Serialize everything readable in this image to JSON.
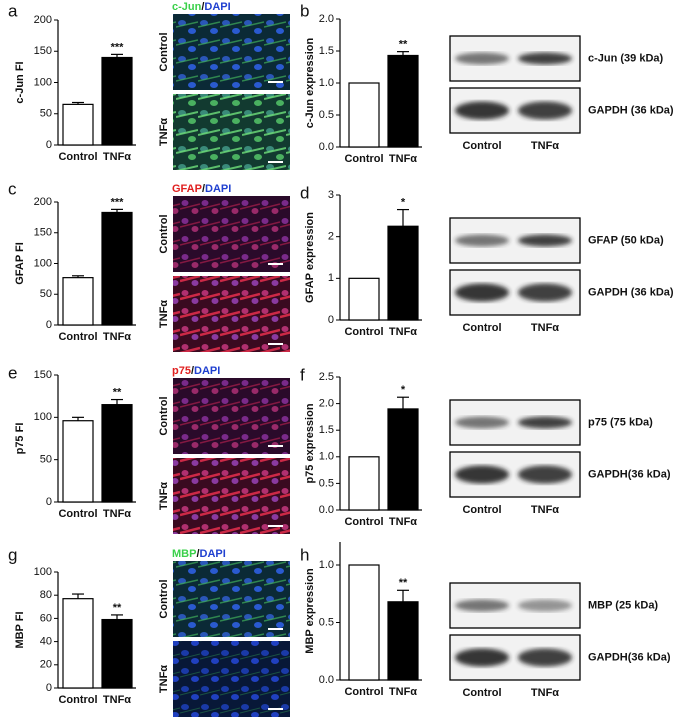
{
  "chart_data": [
    {
      "type": "bar",
      "panel": "a",
      "ylabel": "c-Jun FI",
      "categories": [
        "Control",
        "TNFα"
      ],
      "values": [
        65,
        140
      ],
      "errors": [
        3,
        5
      ],
      "significance": [
        null,
        "***"
      ],
      "ylim": [
        0,
        200
      ],
      "yticks": [
        0,
        50,
        100,
        150,
        200
      ]
    },
    {
      "type": "bar",
      "panel": "b",
      "ylabel": "c-Jun expression",
      "categories": [
        "Control",
        "TNFα"
      ],
      "values": [
        1.0,
        1.43
      ],
      "errors": [
        null,
        0.06
      ],
      "significance": [
        null,
        "**"
      ],
      "ylim": [
        0,
        2
      ],
      "yticks": [
        {
          "value": 0,
          "label": "0.0"
        },
        0.5,
        {
          "value": 1,
          "label": "1.0"
        },
        1.5,
        {
          "value": 2,
          "label": "2.0"
        }
      ]
    },
    {
      "type": "bar",
      "panel": "c",
      "ylabel": "GFAP FI",
      "categories": [
        "Control",
        "TNFα"
      ],
      "values": [
        77,
        183
      ],
      "errors": [
        3,
        5
      ],
      "significance": [
        null,
        "***"
      ],
      "ylim": [
        0,
        200
      ],
      "yticks": [
        0,
        50,
        100,
        150,
        200
      ]
    },
    {
      "type": "bar",
      "panel": "d",
      "ylabel": "GFAP expression",
      "categories": [
        "Control",
        "TNFα"
      ],
      "values": [
        1,
        2.25
      ],
      "errors": [
        null,
        0.4
      ],
      "significance": [
        null,
        "*"
      ],
      "ylim": [
        0,
        3
      ],
      "yticks": [
        0,
        1,
        2,
        3
      ]
    },
    {
      "type": "bar",
      "panel": "e",
      "ylabel": "p75 FI",
      "categories": [
        "Control",
        "TNFα"
      ],
      "values": [
        96,
        115
      ],
      "errors": [
        4,
        6
      ],
      "significance": [
        null,
        "**"
      ],
      "ylim": [
        0,
        150
      ],
      "yticks": [
        0,
        50,
        100,
        150
      ]
    },
    {
      "type": "bar",
      "panel": "f",
      "ylabel": "p75 expression",
      "categories": [
        "Control",
        "TNFα"
      ],
      "values": [
        1.0,
        1.9
      ],
      "errors": [
        null,
        0.22
      ],
      "significance": [
        null,
        "*"
      ],
      "ylim": [
        0,
        2.5
      ],
      "yticks": [
        {
          "value": 0,
          "label": "0.0"
        },
        0.5,
        {
          "value": 1,
          "label": "1.0"
        },
        1.5,
        {
          "value": 2,
          "label": "2.0"
        },
        2.5
      ]
    },
    {
      "type": "bar",
      "panel": "g",
      "ylabel": "MBP FI",
      "categories": [
        "Control",
        "TNFα"
      ],
      "values": [
        77,
        59
      ],
      "errors": [
        4,
        4
      ],
      "significance": [
        null,
        "**"
      ],
      "ylim": [
        0,
        100
      ],
      "yticks": [
        0,
        20,
        40,
        60,
        80,
        100
      ]
    },
    {
      "type": "bar",
      "panel": "h",
      "ylabel": "MBP expression",
      "categories": [
        "Control",
        "TNFα"
      ],
      "values": [
        1.0,
        0.68
      ],
      "errors": [
        null,
        0.1
      ],
      "significance": [
        null,
        "**"
      ],
      "ylim": [
        0,
        1.2
      ],
      "yticks": [
        {
          "value": 0,
          "label": "0.0"
        },
        0.5,
        {
          "value": 1,
          "label": "1.0"
        }
      ]
    }
  ],
  "rows": [
    {
      "stain": {
        "marker": "c-Jun",
        "sep": "/",
        "nuclear": "DAPI"
      },
      "image_labels": [
        "Control",
        "TNFα"
      ],
      "blot": {
        "bands": [
          "c-Jun (39 kDa)",
          "GAPDH (36 kDa)"
        ],
        "lanes": [
          "Control",
          "TNFα"
        ]
      }
    },
    {
      "stain": {
        "marker": "GFAP",
        "sep": "/",
        "nuclear": "DAPI"
      },
      "image_labels": [
        "Control",
        "TNFα"
      ],
      "blot": {
        "bands": [
          "GFAP (50 kDa)",
          "GAPDH (36 kDa)"
        ],
        "lanes": [
          "Control",
          "TNFα"
        ]
      }
    },
    {
      "stain": {
        "marker": "p75",
        "sep": "/",
        "nuclear": "DAPI"
      },
      "image_labels": [
        "Control",
        "TNFα"
      ],
      "blot": {
        "bands": [
          "p75 (75 kDa)",
          "GAPDH(36 kDa)"
        ],
        "lanes": [
          "Control",
          "TNFα"
        ]
      }
    },
    {
      "stain": {
        "marker": "MBP",
        "sep": "/",
        "nuclear": "DAPI"
      },
      "image_labels": [
        "Control",
        "TNFα"
      ],
      "blot": {
        "bands": [
          "MBP (25 kDa)",
          "GAPDH(36 kDa)"
        ],
        "lanes": [
          "Control",
          "TNFα"
        ]
      }
    }
  ]
}
